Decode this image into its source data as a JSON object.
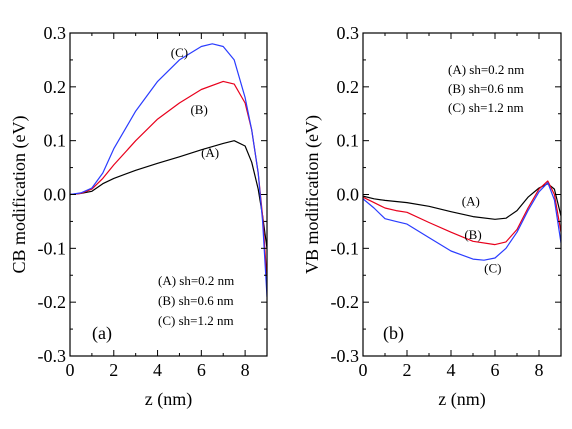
{
  "chart_data": [
    {
      "type": "line",
      "panel_label": "(a)",
      "xlabel": "z (nm)",
      "ylabel": "CB modification (eV)",
      "xlim": [
        0,
        9
      ],
      "ylim": [
        -0.3,
        0.3
      ],
      "xticks": [
        0,
        2,
        4,
        6,
        8
      ],
      "yticks": [
        -0.3,
        -0.2,
        -0.1,
        0.0,
        0.1,
        0.2,
        0.3
      ],
      "ytick_labels": [
        "-0.3",
        "-0.2",
        "-0.1",
        "0.0",
        "0.1",
        "0.2",
        "0.3"
      ],
      "legend_position": "bottom-right",
      "legend": [
        "(A) sh=0.2 nm",
        "(B) sh=0.6 nm",
        "(C) sh=1.2 nm"
      ],
      "series": [
        {
          "label": "(A)",
          "color": "#000000",
          "x": [
            0,
            0.5,
            1.0,
            1.5,
            2.0,
            3.0,
            4.0,
            5.0,
            6.0,
            7.0,
            7.5,
            8.0,
            8.3,
            8.6,
            8.8,
            9.0
          ],
          "y": [
            0.0,
            0.002,
            0.006,
            0.02,
            0.03,
            0.045,
            0.058,
            0.07,
            0.083,
            0.095,
            0.1,
            0.09,
            0.06,
            0.01,
            -0.04,
            -0.1
          ]
        },
        {
          "label": "(B)",
          "color": "#e8001c",
          "x": [
            0,
            0.5,
            1.0,
            1.5,
            2.0,
            3.0,
            4.0,
            5.0,
            6.0,
            7.0,
            7.5,
            8.0,
            8.3,
            8.6,
            8.8,
            9.0
          ],
          "y": [
            0.0,
            0.002,
            0.01,
            0.03,
            0.055,
            0.1,
            0.14,
            0.17,
            0.195,
            0.21,
            0.205,
            0.17,
            0.12,
            0.04,
            -0.04,
            -0.16
          ]
        },
        {
          "label": "(C)",
          "color": "#2a3cff",
          "x": [
            0,
            0.5,
            1.0,
            1.5,
            2.0,
            3.0,
            4.0,
            5.0,
            6.0,
            6.5,
            7.0,
            7.5,
            8.0,
            8.3,
            8.6,
            8.8,
            9.0
          ],
          "y": [
            0.0,
            0.003,
            0.012,
            0.04,
            0.085,
            0.155,
            0.21,
            0.25,
            0.275,
            0.28,
            0.275,
            0.25,
            0.18,
            0.12,
            0.04,
            -0.05,
            -0.19
          ]
        }
      ],
      "curve_labels": [
        {
          "text": "(A)",
          "x": 6.4,
          "y": 0.07
        },
        {
          "text": "(B)",
          "x": 5.9,
          "y": 0.15
        },
        {
          "text": "(C)",
          "x": 5.0,
          "y": 0.255
        }
      ]
    },
    {
      "type": "line",
      "panel_label": "(b)",
      "xlabel": "z (nm)",
      "ylabel": "VB modification (eV)",
      "xlim": [
        0,
        9
      ],
      "ylim": [
        -0.3,
        0.3
      ],
      "xticks": [
        0,
        2,
        4,
        6,
        8
      ],
      "yticks": [
        -0.3,
        -0.2,
        -0.1,
        0.0,
        0.1,
        0.2,
        0.3
      ],
      "ytick_labels": [
        "-0.3",
        "-0.2",
        "-0.1",
        "0.0",
        "0.1",
        "0.2",
        "0.3"
      ],
      "legend_position": "top-right",
      "legend": [
        "(A) sh=0.2 nm",
        "(B) sh=0.6 nm",
        "(C) sh=1.2 nm"
      ],
      "series": [
        {
          "label": "(A)",
          "color": "#000000",
          "x": [
            0,
            0.5,
            1.0,
            1.5,
            2.0,
            3.0,
            4.0,
            5.0,
            6.0,
            6.5,
            7.0,
            7.5,
            8.0,
            8.4,
            8.7,
            9.0
          ],
          "y": [
            -0.003,
            -0.008,
            -0.011,
            -0.013,
            -0.015,
            -0.022,
            -0.032,
            -0.041,
            -0.046,
            -0.044,
            -0.03,
            -0.005,
            0.012,
            0.02,
            0.01,
            -0.04
          ]
        },
        {
          "label": "(B)",
          "color": "#e8001c",
          "x": [
            0,
            0.5,
            1.0,
            1.5,
            2.0,
            3.0,
            4.0,
            5.0,
            6.0,
            6.5,
            7.0,
            7.5,
            8.0,
            8.4,
            8.7,
            9.0
          ],
          "y": [
            -0.005,
            -0.015,
            -0.025,
            -0.03,
            -0.033,
            -0.052,
            -0.07,
            -0.087,
            -0.093,
            -0.088,
            -0.065,
            -0.025,
            0.01,
            0.025,
            0.0,
            -0.07
          ]
        },
        {
          "label": "(C)",
          "color": "#2a3cff",
          "x": [
            0,
            0.5,
            1.0,
            1.5,
            2.0,
            3.0,
            4.0,
            5.0,
            5.5,
            6.0,
            6.5,
            7.0,
            7.5,
            8.0,
            8.4,
            8.7,
            9.0
          ],
          "y": [
            -0.008,
            -0.025,
            -0.045,
            -0.05,
            -0.055,
            -0.08,
            -0.105,
            -0.12,
            -0.122,
            -0.118,
            -0.1,
            -0.07,
            -0.03,
            0.005,
            0.022,
            -0.01,
            -0.09
          ]
        }
      ],
      "curve_labels": [
        {
          "text": "(A)",
          "x": 4.9,
          "y": -0.02
        },
        {
          "text": "(B)",
          "x": 5.0,
          "y": -0.083
        },
        {
          "text": "(C)",
          "x": 5.9,
          "y": -0.145
        }
      ]
    }
  ]
}
